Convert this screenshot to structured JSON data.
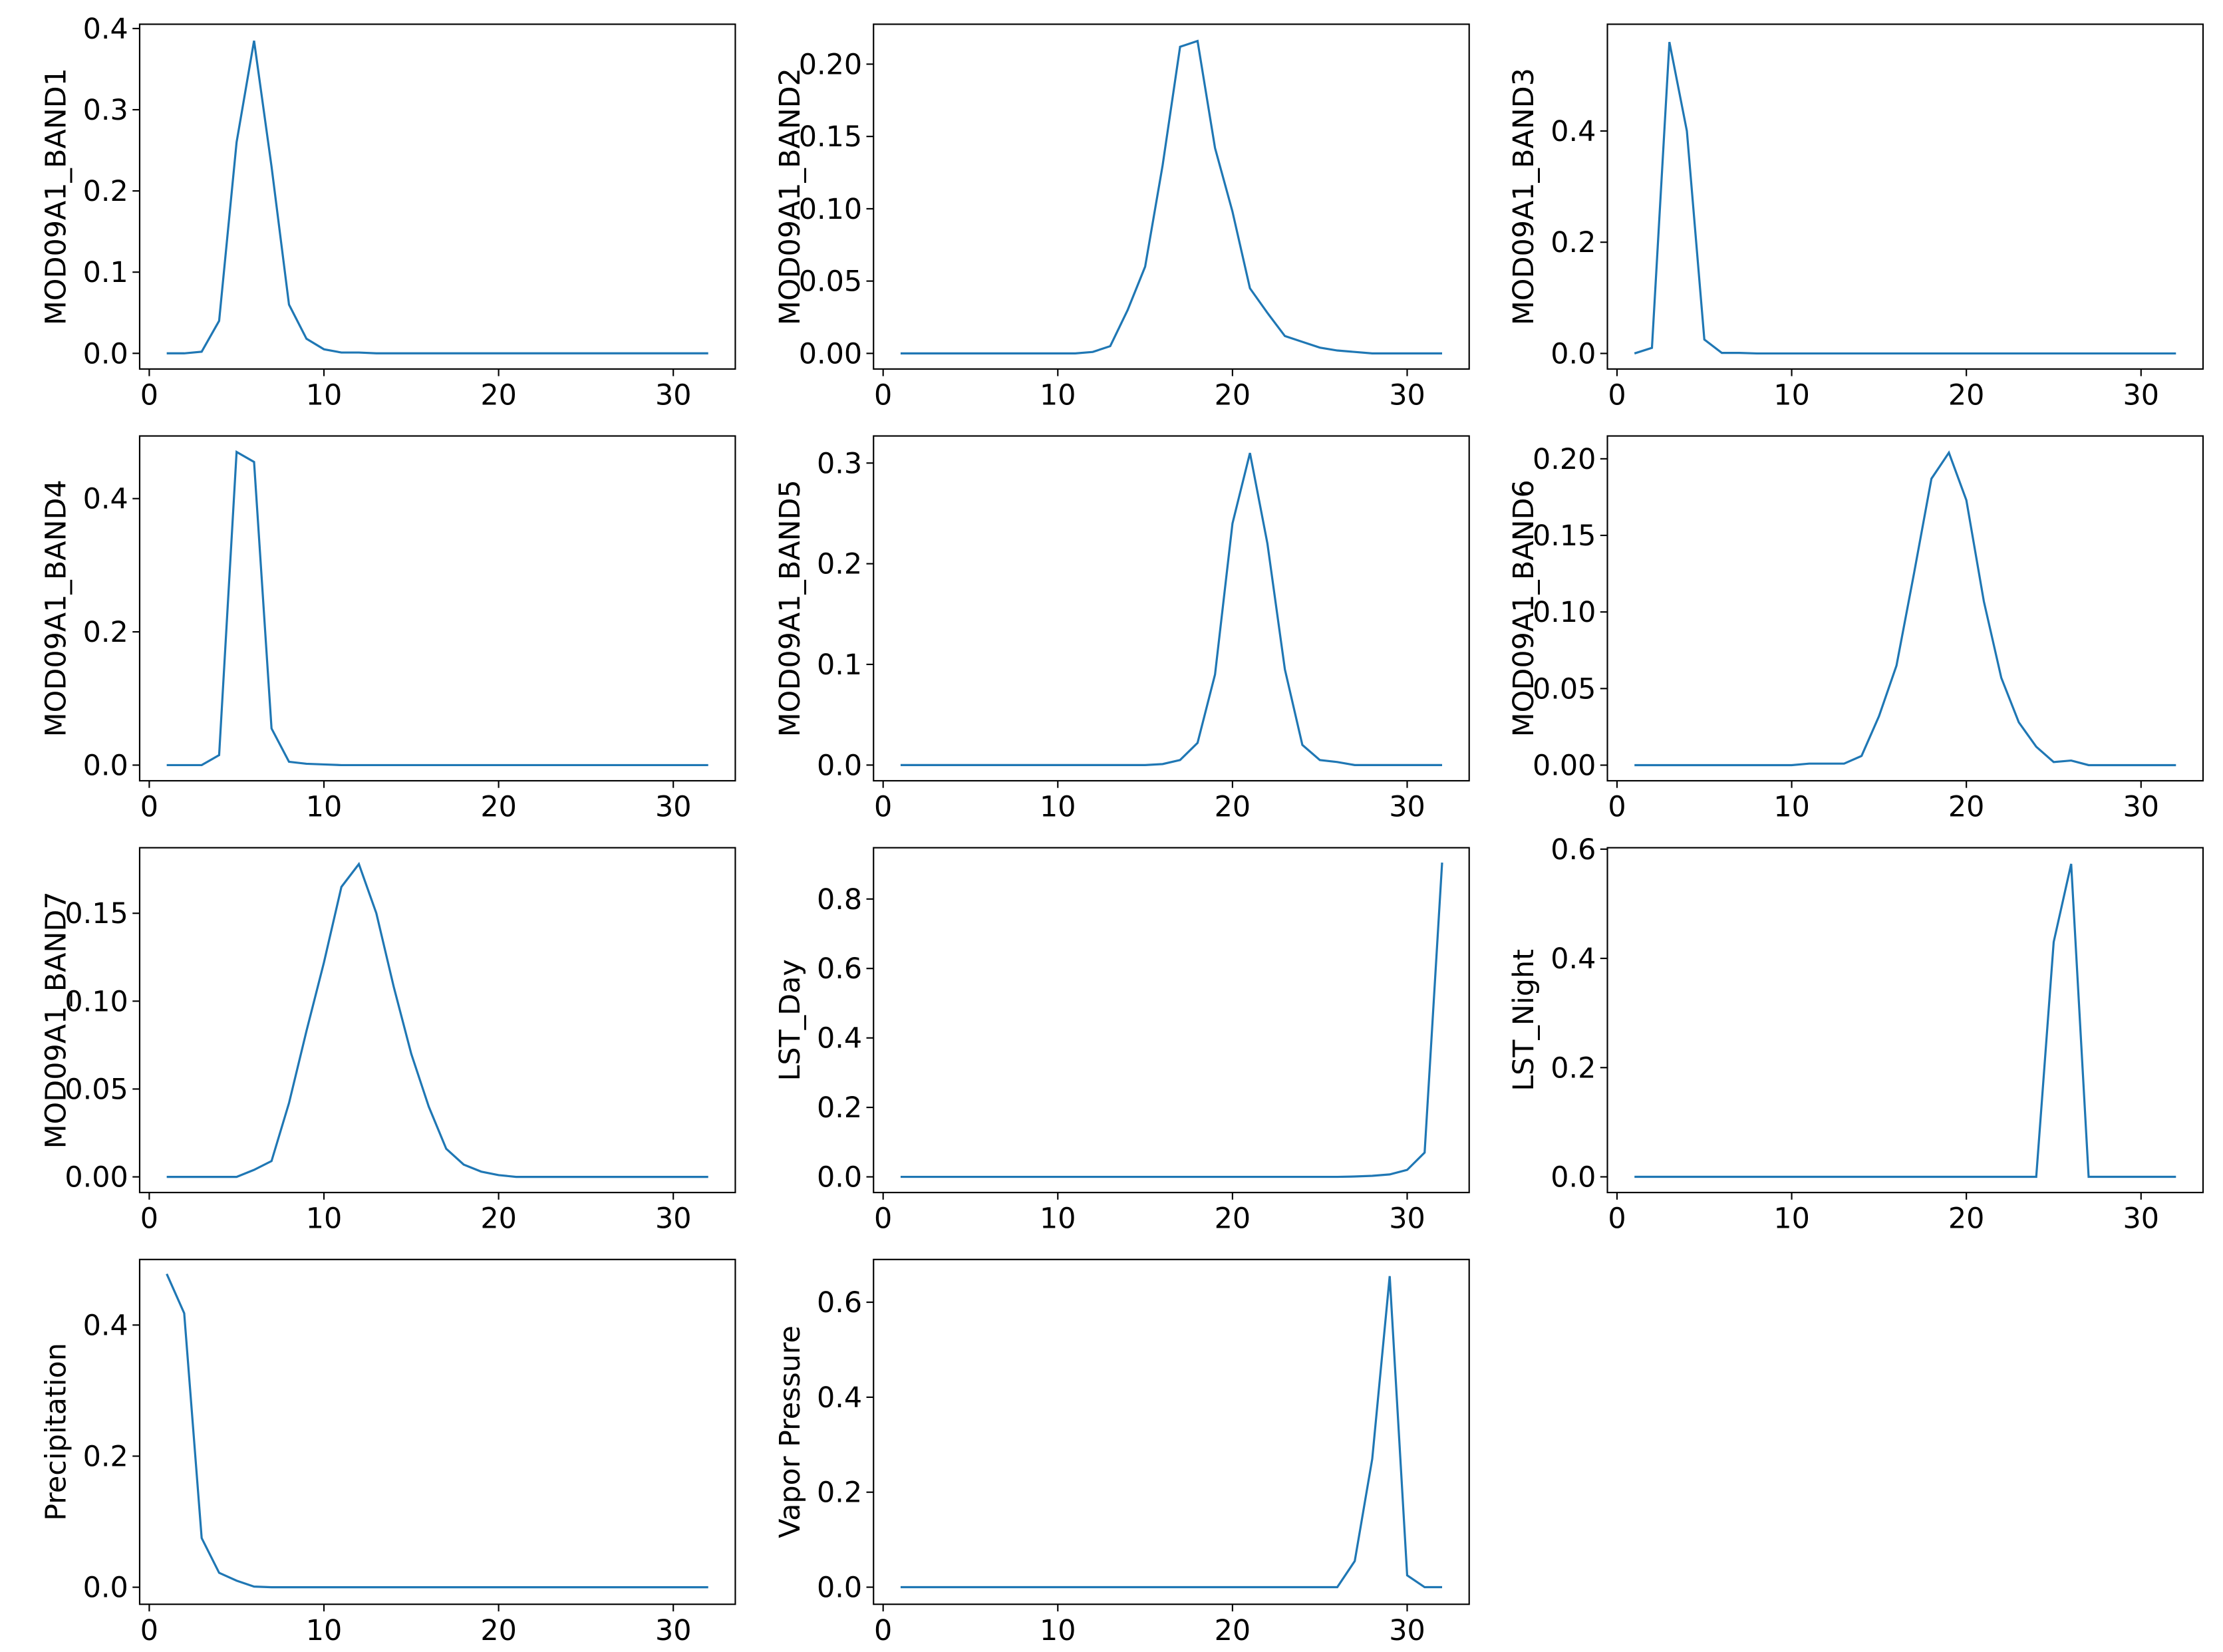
{
  "chart_data": [
    {
      "type": "line",
      "ylabel": "MOD09A1_BAND1",
      "color": "#1f77b4",
      "x": [
        1,
        2,
        3,
        4,
        5,
        6,
        7,
        8,
        9,
        10,
        11,
        12,
        13,
        14,
        15,
        16,
        17,
        18,
        19,
        20,
        21,
        22,
        23,
        24,
        25,
        26,
        27,
        28,
        29,
        30,
        31,
        32
      ],
      "values": [
        0,
        0,
        0.002,
        0.04,
        0.26,
        0.385,
        0.23,
        0.06,
        0.018,
        0.005,
        0.001,
        0.001,
        0,
        0,
        0,
        0,
        0,
        0,
        0,
        0,
        0,
        0,
        0,
        0,
        0,
        0,
        0,
        0,
        0,
        0,
        0,
        0
      ],
      "xlim": [
        -0.55,
        33.55
      ],
      "xticks": [
        0,
        10,
        20,
        30
      ],
      "ylim": [
        -0.0193,
        0.4053
      ],
      "yticks": [
        {
          "value": 0,
          "label": "0.0"
        },
        0.1,
        0.2,
        0.3,
        0.4
      ]
    },
    {
      "type": "line",
      "ylabel": "MOD09A1_BAND2",
      "color": "#1f77b4",
      "x": [
        1,
        2,
        3,
        4,
        5,
        6,
        7,
        8,
        9,
        10,
        11,
        12,
        13,
        14,
        15,
        16,
        17,
        18,
        19,
        20,
        21,
        22,
        23,
        24,
        25,
        26,
        27,
        28,
        29,
        30,
        31,
        32
      ],
      "values": [
        0,
        0,
        0,
        0,
        0,
        0,
        0,
        0,
        0,
        0,
        0,
        0.001,
        0.005,
        0.03,
        0.06,
        0.13,
        0.212,
        0.216,
        0.142,
        0.098,
        0.045,
        0.028,
        0.012,
        0.008,
        0.004,
        0.002,
        0.001,
        0,
        0,
        0,
        0,
        0
      ],
      "xlim": [
        -0.55,
        33.55
      ],
      "xticks": [
        0,
        10,
        20,
        30
      ],
      "ylim": [
        -0.0108,
        0.2276
      ],
      "yticks": [
        {
          "value": 0,
          "label": "0.00"
        },
        {
          "value": 0.05,
          "label": "0.05"
        },
        {
          "value": 0.1,
          "label": "0.10"
        },
        {
          "value": 0.15,
          "label": "0.15"
        },
        {
          "value": 0.2,
          "label": "0.20"
        }
      ]
    },
    {
      "type": "line",
      "ylabel": "MOD09A1_BAND3",
      "color": "#1f77b4",
      "x": [
        1,
        2,
        3,
        4,
        5,
        6,
        7,
        8,
        9,
        10,
        11,
        12,
        13,
        14,
        15,
        16,
        17,
        18,
        19,
        20,
        21,
        22,
        23,
        24,
        25,
        26,
        27,
        28,
        29,
        30,
        31,
        32
      ],
      "values": [
        0,
        0.01,
        0.56,
        0.4,
        0.025,
        0.001,
        0.001,
        0,
        0,
        0,
        0,
        0,
        0,
        0,
        0,
        0,
        0,
        0,
        0,
        0,
        0,
        0,
        0,
        0,
        0,
        0,
        0,
        0,
        0,
        0,
        0,
        0
      ],
      "xlim": [
        -0.55,
        33.55
      ],
      "xticks": [
        0,
        10,
        20,
        30
      ],
      "ylim": [
        -0.028,
        0.592
      ],
      "yticks": [
        {
          "value": 0,
          "label": "0.0"
        },
        0.2,
        0.4
      ]
    },
    {
      "type": "line",
      "ylabel": "MOD09A1_BAND4",
      "color": "#1f77b4",
      "x": [
        1,
        2,
        3,
        4,
        5,
        6,
        7,
        8,
        9,
        10,
        11,
        12,
        13,
        14,
        15,
        16,
        17,
        18,
        19,
        20,
        21,
        22,
        23,
        24,
        25,
        26,
        27,
        28,
        29,
        30,
        31,
        32
      ],
      "values": [
        0,
        0,
        0,
        0.015,
        0.47,
        0.455,
        0.055,
        0.005,
        0.002,
        0.001,
        0,
        0,
        0,
        0,
        0,
        0,
        0,
        0,
        0,
        0,
        0,
        0,
        0,
        0,
        0,
        0,
        0,
        0,
        0,
        0,
        0,
        0
      ],
      "xlim": [
        -0.55,
        33.55
      ],
      "xticks": [
        0,
        10,
        20,
        30
      ],
      "ylim": [
        -0.0235,
        0.494
      ],
      "yticks": [
        {
          "value": 0,
          "label": "0.0"
        },
        0.2,
        0.4
      ]
    },
    {
      "type": "line",
      "ylabel": "MOD09A1_BAND5",
      "color": "#1f77b4",
      "x": [
        1,
        2,
        3,
        4,
        5,
        6,
        7,
        8,
        9,
        10,
        11,
        12,
        13,
        14,
        15,
        16,
        17,
        18,
        19,
        20,
        21,
        22,
        23,
        24,
        25,
        26,
        27,
        28,
        29,
        30,
        31,
        32
      ],
      "values": [
        0,
        0,
        0,
        0,
        0,
        0,
        0,
        0,
        0,
        0,
        0,
        0,
        0,
        0,
        0,
        0.001,
        0.005,
        0.022,
        0.09,
        0.24,
        0.31,
        0.22,
        0.095,
        0.02,
        0.005,
        0.003,
        0,
        0,
        0,
        0,
        0,
        0
      ],
      "xlim": [
        -0.55,
        33.55
      ],
      "xticks": [
        0,
        10,
        20,
        30
      ],
      "ylim": [
        -0.0156,
        0.3269
      ],
      "yticks": [
        {
          "value": 0,
          "label": "0.0"
        },
        0.1,
        0.2,
        0.3
      ]
    },
    {
      "type": "line",
      "ylabel": "MOD09A1_BAND6",
      "color": "#1f77b4",
      "x": [
        1,
        2,
        3,
        4,
        5,
        6,
        7,
        8,
        9,
        10,
        11,
        12,
        13,
        14,
        15,
        16,
        17,
        18,
        19,
        20,
        21,
        22,
        23,
        24,
        25,
        26,
        27,
        28,
        29,
        30,
        31,
        32
      ],
      "values": [
        0,
        0,
        0,
        0,
        0,
        0,
        0,
        0,
        0,
        0,
        0.001,
        0.001,
        0.001,
        0.006,
        0.032,
        0.065,
        0.125,
        0.187,
        0.204,
        0.173,
        0.107,
        0.057,
        0.028,
        0.012,
        0.002,
        0.003,
        0,
        0,
        0,
        0,
        0,
        0
      ],
      "xlim": [
        -0.55,
        33.55
      ],
      "xticks": [
        0,
        10,
        20,
        30
      ],
      "ylim": [
        -0.0102,
        0.2149
      ],
      "yticks": [
        {
          "value": 0,
          "label": "0.00"
        },
        {
          "value": 0.05,
          "label": "0.05"
        },
        {
          "value": 0.1,
          "label": "0.10"
        },
        {
          "value": 0.15,
          "label": "0.15"
        },
        {
          "value": 0.2,
          "label": "0.20"
        }
      ]
    },
    {
      "type": "line",
      "ylabel": "MOD09A1_BAND7",
      "color": "#1f77b4",
      "x": [
        1,
        2,
        3,
        4,
        5,
        6,
        7,
        8,
        9,
        10,
        11,
        12,
        13,
        14,
        15,
        16,
        17,
        18,
        19,
        20,
        21,
        22,
        23,
        24,
        25,
        26,
        27,
        28,
        29,
        30,
        31,
        32
      ],
      "values": [
        0,
        0,
        0,
        0,
        0,
        0.004,
        0.009,
        0.042,
        0.083,
        0.122,
        0.165,
        0.178,
        0.15,
        0.108,
        0.07,
        0.04,
        0.016,
        0.007,
        0.003,
        0.001,
        0,
        0,
        0,
        0,
        0,
        0,
        0,
        0,
        0,
        0,
        0,
        0
      ],
      "xlim": [
        -0.55,
        33.55
      ],
      "xticks": [
        0,
        10,
        20,
        30
      ],
      "ylim": [
        -0.0089,
        0.1873
      ],
      "yticks": [
        {
          "value": 0,
          "label": "0.00"
        },
        {
          "value": 0.05,
          "label": "0.05"
        },
        {
          "value": 0.1,
          "label": "0.10"
        },
        {
          "value": 0.15,
          "label": "0.15"
        }
      ]
    },
    {
      "type": "line",
      "ylabel": "LST_Day",
      "color": "#1f77b4",
      "x": [
        1,
        2,
        3,
        4,
        5,
        6,
        7,
        8,
        9,
        10,
        11,
        12,
        13,
        14,
        15,
        16,
        17,
        18,
        19,
        20,
        21,
        22,
        23,
        24,
        25,
        26,
        27,
        28,
        29,
        30,
        31,
        32
      ],
      "values": [
        0,
        0,
        0,
        0,
        0,
        0,
        0,
        0,
        0,
        0,
        0,
        0,
        0,
        0,
        0,
        0,
        0,
        0,
        0,
        0,
        0,
        0,
        0,
        0,
        0,
        0,
        0.001,
        0.003,
        0.007,
        0.02,
        0.07,
        0.905
      ],
      "xlim": [
        -0.55,
        33.55
      ],
      "xticks": [
        0,
        10,
        20,
        30
      ],
      "ylim": [
        -0.0451,
        0.9477
      ],
      "yticks": [
        {
          "value": 0,
          "label": "0.0"
        },
        0.2,
        0.4,
        0.6,
        0.8
      ]
    },
    {
      "type": "line",
      "ylabel": "LST_Night",
      "color": "#1f77b4",
      "x": [
        1,
        2,
        3,
        4,
        5,
        6,
        7,
        8,
        9,
        10,
        11,
        12,
        13,
        14,
        15,
        16,
        17,
        18,
        19,
        20,
        21,
        22,
        23,
        24,
        25,
        26,
        27,
        28,
        29,
        30,
        31,
        32
      ],
      "values": [
        0,
        0,
        0,
        0,
        0,
        0,
        0,
        0,
        0,
        0,
        0,
        0,
        0,
        0,
        0,
        0,
        0,
        0,
        0,
        0,
        0,
        0,
        0,
        0,
        0.43,
        0.573,
        0,
        0,
        0,
        0,
        0,
        0
      ],
      "xlim": [
        -0.55,
        33.55
      ],
      "xticks": [
        0,
        10,
        20,
        30
      ],
      "ylim": [
        -0.0287,
        0.6026
      ],
      "yticks": [
        {
          "value": 0,
          "label": "0.0"
        },
        0.2,
        0.4,
        0.6
      ]
    },
    {
      "type": "line",
      "ylabel": "Precipitation",
      "color": "#1f77b4",
      "x": [
        1,
        2,
        3,
        4,
        5,
        6,
        7,
        8,
        9,
        10,
        11,
        12,
        13,
        14,
        15,
        16,
        17,
        18,
        19,
        20,
        21,
        22,
        23,
        24,
        25,
        26,
        27,
        28,
        29,
        30,
        31,
        32
      ],
      "values": [
        0.478,
        0.418,
        0.075,
        0.022,
        0.01,
        0.001,
        0,
        0,
        0,
        0,
        0,
        0,
        0,
        0,
        0,
        0,
        0,
        0,
        0,
        0,
        0,
        0,
        0,
        0,
        0,
        0,
        0,
        0,
        0,
        0,
        0,
        0
      ],
      "xlim": [
        -0.55,
        33.55
      ],
      "xticks": [
        0,
        10,
        20,
        30
      ],
      "ylim": [
        -0.026,
        0.5
      ],
      "yticks": [
        {
          "value": 0,
          "label": "0.0"
        },
        0.2,
        0.4
      ]
    },
    {
      "type": "line",
      "ylabel": "Vapor Pressure",
      "color": "#1f77b4",
      "x": [
        1,
        2,
        3,
        4,
        5,
        6,
        7,
        8,
        9,
        10,
        11,
        12,
        13,
        14,
        15,
        16,
        17,
        18,
        19,
        20,
        21,
        22,
        23,
        24,
        25,
        26,
        27,
        28,
        29,
        30,
        31,
        32
      ],
      "values": [
        0,
        0,
        0,
        0,
        0,
        0,
        0,
        0,
        0,
        0,
        0,
        0,
        0,
        0,
        0,
        0,
        0,
        0,
        0,
        0,
        0,
        0,
        0,
        0,
        0,
        0,
        0.055,
        0.27,
        0.655,
        0.025,
        0,
        0
      ],
      "xlim": [
        -0.55,
        33.55
      ],
      "xticks": [
        0,
        10,
        20,
        30
      ],
      "ylim": [
        -0.036,
        0.69
      ],
      "yticks": [
        {
          "value": 0,
          "label": "0.0"
        },
        0.2,
        0.4,
        0.6
      ]
    }
  ]
}
